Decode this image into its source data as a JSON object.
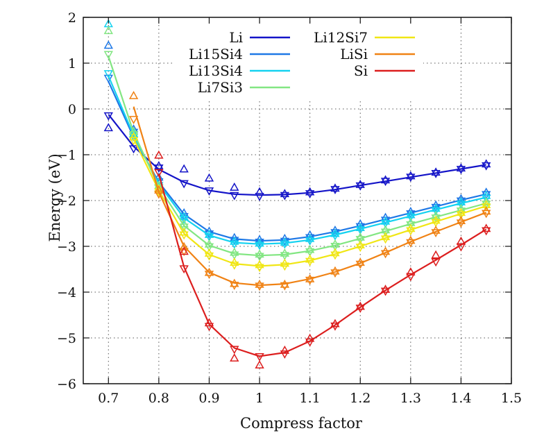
{
  "chart_data": {
    "type": "line",
    "xlabel": "Compress factor",
    "ylabel": "Energy (eV)",
    "xlim": [
      0.65,
      1.5
    ],
    "ylim": [
      -6,
      2
    ],
    "xticks": [
      0.7,
      0.8,
      0.9,
      1,
      1.1,
      1.2,
      1.3,
      1.4,
      1.5
    ],
    "yticks": [
      -6,
      -5,
      -4,
      -3,
      -2,
      -1,
      0,
      1,
      2
    ],
    "xtick_labels": [
      "0.7",
      "0.8",
      "0.9",
      "1",
      "1.1",
      "1.2",
      "1.3",
      "1.4",
      "1.5"
    ],
    "ytick_labels": [
      "−6",
      "−5",
      "−4",
      "−3",
      "−2",
      "−1",
      "0",
      "1",
      "2"
    ],
    "grid": true,
    "grid_style": "dotted",
    "legend_placement": "top",
    "x": [
      0.7,
      0.75,
      0.8,
      0.85,
      0.9,
      0.95,
      1.0,
      1.05,
      1.1,
      1.15,
      1.2,
      1.25,
      1.3,
      1.35,
      1.4,
      1.45
    ],
    "series": [
      {
        "name": "Li",
        "color": "#1414c8",
        "fit": [
          -0.12,
          -0.82,
          -1.32,
          -1.6,
          -1.78,
          -1.86,
          -1.88,
          -1.87,
          -1.83,
          -1.76,
          -1.67,
          -1.58,
          -1.49,
          -1.4,
          -1.31,
          -1.22
        ],
        "up": [
          -0.42,
          -0.62,
          -1.25,
          -1.32,
          -1.52,
          -1.72,
          -1.82,
          -1.86,
          -1.82,
          -1.74,
          -1.66,
          -1.56,
          -1.47,
          -1.39,
          -1.3,
          -1.21
        ],
        "down": [
          -0.14,
          -0.86,
          -1.28,
          -1.62,
          -1.78,
          -1.88,
          -1.9,
          -1.88,
          -1.84,
          -1.75,
          -1.67,
          -1.57,
          -1.48,
          -1.4,
          -1.31,
          -1.23
        ]
      },
      {
        "name": "Li15Si4",
        "color": "#1e78e6",
        "fit": [
          0.6,
          -0.62,
          -1.6,
          -2.3,
          -2.68,
          -2.84,
          -2.88,
          -2.86,
          -2.79,
          -2.68,
          -2.55,
          -2.41,
          -2.27,
          -2.13,
          -1.99,
          -1.86
        ],
        "up": [
          1.38,
          -0.45,
          -1.5,
          -2.28,
          -2.68,
          -2.82,
          -2.86,
          -2.84,
          -2.76,
          -2.66,
          -2.52,
          -2.38,
          -2.25,
          -2.11,
          -1.97,
          -1.83
        ],
        "down": [
          0.68,
          -0.5,
          -1.58,
          -2.34,
          -2.72,
          -2.86,
          -2.9,
          -2.88,
          -2.8,
          -2.69,
          -2.56,
          -2.42,
          -2.28,
          -2.14,
          -2.0,
          -1.86
        ]
      },
      {
        "name": "Li13Si4",
        "color": "#14d2f0",
        "fit": [
          0.72,
          -0.58,
          -1.64,
          -2.38,
          -2.76,
          -2.92,
          -2.95,
          -2.93,
          -2.86,
          -2.75,
          -2.62,
          -2.48,
          -2.34,
          -2.2,
          -2.06,
          -1.93
        ],
        "up": [
          1.85,
          -0.55,
          -1.6,
          -2.36,
          -2.75,
          -2.9,
          -2.94,
          -2.92,
          -2.84,
          -2.73,
          -2.6,
          -2.46,
          -2.32,
          -2.18,
          -2.04,
          -1.9
        ],
        "down": [
          0.78,
          -0.6,
          -1.66,
          -2.4,
          -2.78,
          -2.94,
          -2.97,
          -2.94,
          -2.87,
          -2.76,
          -2.63,
          -2.49,
          -2.35,
          -2.21,
          -2.07,
          -1.94
        ]
      },
      {
        "name": "Li7Si3",
        "color": "#82e682",
        "fit": [
          1.15,
          -0.52,
          -1.7,
          -2.55,
          -2.98,
          -3.16,
          -3.2,
          -3.18,
          -3.1,
          -2.98,
          -2.83,
          -2.67,
          -2.51,
          -2.36,
          -2.21,
          -2.06
        ],
        "up": [
          1.7,
          -0.5,
          -1.68,
          -2.52,
          -2.96,
          -3.14,
          -3.18,
          -3.16,
          -3.08,
          -2.96,
          -2.81,
          -2.65,
          -2.49,
          -2.34,
          -2.19,
          -2.04
        ],
        "down": [
          1.2,
          -0.55,
          -1.72,
          -2.57,
          -3.0,
          -3.18,
          -3.21,
          -3.19,
          -3.11,
          -2.99,
          -2.84,
          -2.68,
          -2.52,
          -2.37,
          -2.22,
          -2.07
        ]
      },
      {
        "name": "Li12Si7",
        "color": "#f0e614",
        "fit": [
          null,
          -0.65,
          -1.78,
          -2.72,
          -3.18,
          -3.38,
          -3.43,
          -3.4,
          -3.31,
          -3.17,
          -3.0,
          -2.82,
          -2.64,
          -2.46,
          -2.29,
          -2.12
        ],
        "up": [
          null,
          -0.62,
          -1.75,
          -2.7,
          -3.16,
          -3.36,
          -3.41,
          -3.38,
          -3.29,
          -3.15,
          -2.98,
          -2.8,
          -2.62,
          -2.44,
          -2.27,
          -2.1
        ],
        "down": [
          null,
          -0.68,
          -1.8,
          -2.74,
          -3.2,
          -3.4,
          -3.45,
          -3.42,
          -3.32,
          -3.18,
          -3.01,
          -2.83,
          -2.65,
          -2.47,
          -2.3,
          -2.13
        ]
      },
      {
        "name": "LiSi",
        "color": "#f08214",
        "fit": [
          null,
          0.05,
          -1.82,
          -3.0,
          -3.57,
          -3.8,
          -3.85,
          -3.82,
          -3.71,
          -3.56,
          -3.37,
          -3.14,
          -2.9,
          -2.68,
          -2.47,
          -2.26
        ],
        "up": [
          null,
          0.28,
          -1.78,
          -3.02,
          -3.58,
          -3.82,
          -3.84,
          -3.84,
          -3.72,
          -3.55,
          -3.36,
          -3.12,
          -2.88,
          -2.66,
          -2.45,
          -2.24
        ],
        "down": [
          null,
          -0.22,
          -1.85,
          -3.1,
          -3.6,
          -3.84,
          -3.86,
          -3.85,
          -3.73,
          -3.57,
          -3.38,
          -3.15,
          -2.91,
          -2.69,
          -2.48,
          -2.27
        ]
      },
      {
        "name": "Si",
        "color": "#dc1e1e",
        "fit": [
          null,
          null,
          -1.42,
          -3.45,
          -4.7,
          -5.22,
          -5.4,
          -5.32,
          -5.07,
          -4.72,
          -4.33,
          -3.96,
          -3.62,
          -3.3,
          -2.97,
          -2.63
        ],
        "up": [
          null,
          null,
          -1.02,
          -3.12,
          -4.68,
          -5.45,
          -5.6,
          -5.28,
          -5.02,
          -4.7,
          -4.32,
          -3.95,
          -3.57,
          -3.2,
          -2.9,
          -2.62
        ],
        "down": [
          null,
          null,
          -1.38,
          -3.48,
          -4.74,
          -5.24,
          -5.4,
          -5.34,
          -5.08,
          -4.73,
          -4.34,
          -3.97,
          -3.65,
          -3.33,
          -3.0,
          -2.65
        ]
      }
    ]
  }
}
